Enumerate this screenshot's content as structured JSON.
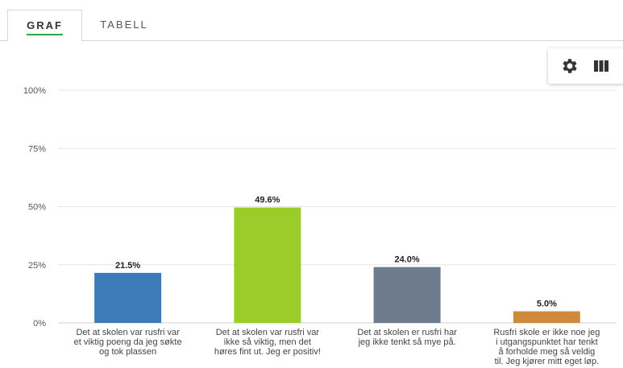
{
  "tabs": [
    {
      "label": "GRAF",
      "active": true
    },
    {
      "label": "TABELL",
      "active": false
    }
  ],
  "toolbar": {
    "icons": [
      "gear-icon",
      "columns-icon"
    ]
  },
  "chart_data": {
    "type": "bar",
    "categories": [
      [
        "Det at skolen var rusfri var",
        "et viktig poeng da jeg søkte",
        "og tok plassen"
      ],
      [
        "Det at skolen var rusfri var",
        "ikke så viktig, men det",
        "høres fint ut. Jeg er positiv!"
      ],
      [
        "Det at skolen er rusfri har",
        "jeg ikke tenkt så mye på."
      ],
      [
        "Rusfri skole er ikke noe jeg",
        "i utgangspunktet har tenkt",
        "å forholde meg så veldig",
        "til. Jeg kjører mitt eget løp."
      ]
    ],
    "values": [
      21.5,
      49.6,
      24.0,
      5.0
    ],
    "value_labels": [
      "21.5%",
      "49.6%",
      "24.0%",
      "5.0%"
    ],
    "colors": [
      "#3d7ab8",
      "#9acd2a",
      "#6d7b8d",
      "#d08a3c"
    ],
    "yticks": [
      "0%",
      "25%",
      "50%",
      "75%",
      "100%"
    ],
    "ylim": [
      0,
      100
    ],
    "grid": true
  }
}
